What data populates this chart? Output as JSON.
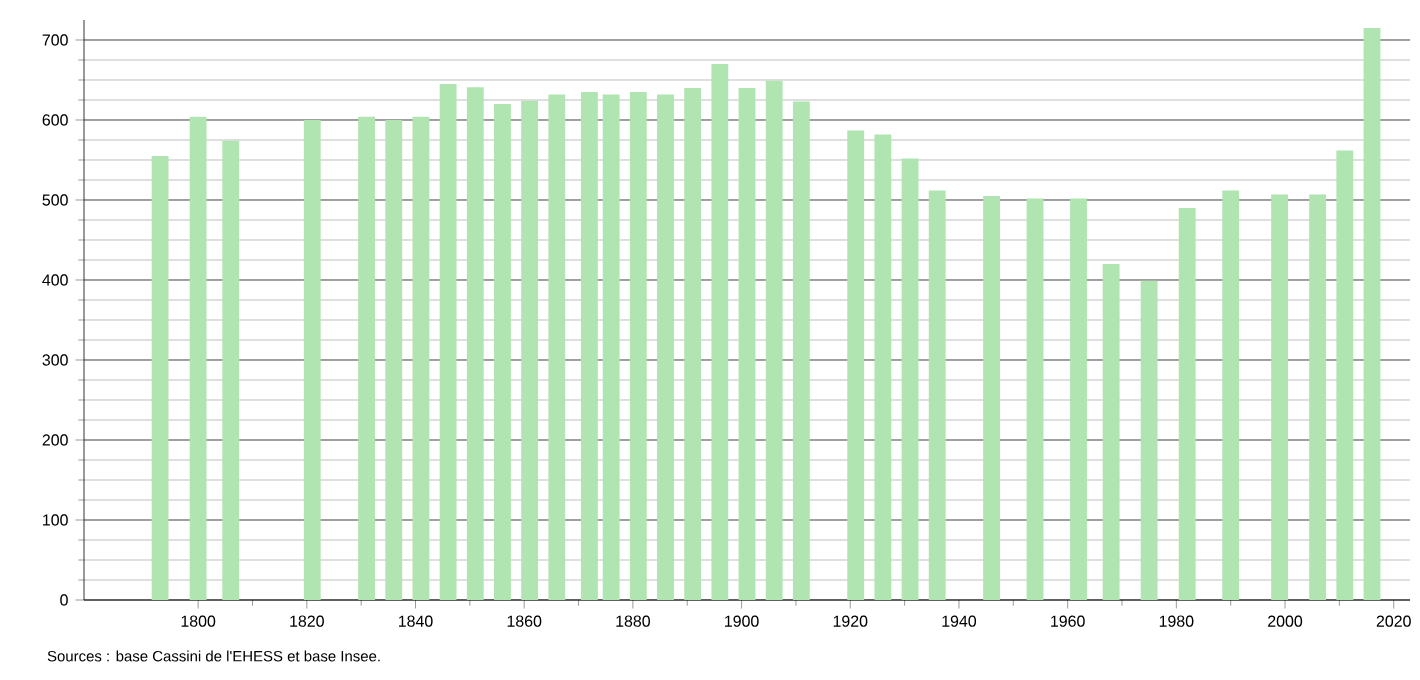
{
  "chart_data": {
    "type": "bar",
    "x": [
      1793,
      1800,
      1806,
      1821,
      1831,
      1836,
      1841,
      1846,
      1851,
      1856,
      1861,
      1866,
      1872,
      1876,
      1881,
      1886,
      1891,
      1896,
      1901,
      1906,
      1911,
      1921,
      1926,
      1931,
      1936,
      1946,
      1954,
      1962,
      1968,
      1975,
      1982,
      1990,
      1999,
      2006,
      2011,
      2016
    ],
    "values": [
      555,
      604,
      574,
      600,
      604,
      600,
      604,
      645,
      641,
      620,
      624,
      632,
      635,
      632,
      635,
      632,
      640,
      670,
      640,
      649,
      623,
      587,
      582,
      552,
      512,
      505,
      502,
      502,
      420,
      399,
      490,
      512,
      507,
      507,
      562,
      715
    ],
    "color": "#b0e4b0",
    "xlim": [
      1779,
      2023
    ],
    "xticks": [
      1800,
      1820,
      1840,
      1860,
      1880,
      1900,
      1920,
      1940,
      1960,
      1980,
      2000,
      2020
    ],
    "ylim": [
      0,
      725
    ],
    "yticks": [
      0,
      100,
      200,
      300,
      400,
      500,
      600,
      700
    ],
    "grid": "y",
    "annotations": [
      "Sources : base Cassini de l'EHESS et base Insee."
    ]
  }
}
